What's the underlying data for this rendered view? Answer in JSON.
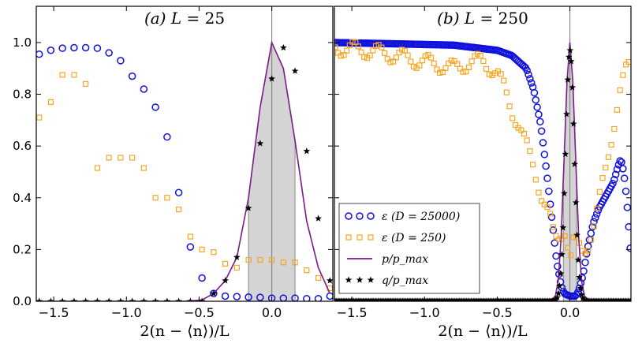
{
  "chart_data": [
    {
      "type": "scatter",
      "title": "(a) L = 25",
      "title_parts": {
        "panel": "(a)",
        "var": "L",
        "eq": " = ",
        "value": "25"
      },
      "xlabel": "2(n − ⟨n⟩)/L",
      "ylabel": "",
      "xlim": [
        -1.62,
        0.42
      ],
      "ylim": [
        0,
        1.14
      ],
      "xticks": [
        -1.5,
        -1.0,
        -0.5,
        0.0
      ],
      "xtick_labels": [
        "−1.5",
        "−1.0",
        "−0.5",
        "0.0"
      ],
      "yticks": [
        0.0,
        0.2,
        0.4,
        0.6,
        0.8,
        1.0
      ],
      "ytick_labels": [
        "0.0",
        "0.2",
        "0.4",
        "0.6",
        "0.8",
        "1.0"
      ],
      "vline_x": 0.0,
      "shaded_range": [
        -0.16,
        0.16
      ],
      "series": [
        {
          "name": "ε (D = 25000)",
          "marker": "circle",
          "color": "#1010dd",
          "x": [
            -1.6,
            -1.52,
            -1.44,
            -1.36,
            -1.28,
            -1.2,
            -1.12,
            -1.04,
            -0.96,
            -0.88,
            -0.8,
            -0.72,
            -0.64,
            -0.56,
            -0.48,
            -0.4,
            -0.32,
            -0.24,
            -0.16,
            -0.08,
            0.0,
            0.08,
            0.16,
            0.24,
            0.32,
            0.4
          ],
          "y": [
            0.955,
            0.97,
            0.978,
            0.98,
            0.98,
            0.978,
            0.96,
            0.93,
            0.87,
            0.82,
            0.75,
            0.635,
            0.42,
            0.21,
            0.09,
            0.03,
            0.02,
            0.018,
            0.016,
            0.015,
            0.012,
            0.012,
            0.012,
            0.01,
            0.01,
            0.02
          ]
        },
        {
          "name": "ε (D = 250)",
          "marker": "square",
          "color": "#f5a623",
          "x": [
            -1.6,
            -1.52,
            -1.44,
            -1.36,
            -1.28,
            -1.2,
            -1.12,
            -1.04,
            -0.96,
            -0.88,
            -0.8,
            -0.72,
            -0.64,
            -0.56,
            -0.48,
            -0.4,
            -0.32,
            -0.24,
            -0.16,
            -0.08,
            0.0,
            0.08,
            0.16,
            0.24,
            0.32,
            0.4
          ],
          "y": [
            0.71,
            0.77,
            0.875,
            0.875,
            0.84,
            0.515,
            0.555,
            0.555,
            0.555,
            0.515,
            0.4,
            0.4,
            0.355,
            0.25,
            0.2,
            0.19,
            0.145,
            0.13,
            0.16,
            0.16,
            0.16,
            0.15,
            0.15,
            0.12,
            0.09,
            0.05
          ]
        },
        {
          "name": "p/p_max",
          "marker": "line",
          "color": "#7b1a8a",
          "x": [
            -1.6,
            -0.6,
            -0.48,
            -0.4,
            -0.32,
            -0.24,
            -0.16,
            -0.08,
            0.0,
            0.08,
            0.16,
            0.24,
            0.32,
            0.4
          ],
          "y": [
            0.0,
            0.0,
            0.005,
            0.03,
            0.08,
            0.17,
            0.4,
            0.75,
            1.0,
            0.9,
            0.62,
            0.31,
            0.13,
            0.03
          ]
        },
        {
          "name": "q/p_max",
          "marker": "star",
          "color": "#000000",
          "x": [
            -1.6,
            -1.52,
            -1.44,
            -1.36,
            -1.28,
            -1.2,
            -1.12,
            -1.04,
            -0.96,
            -0.88,
            -0.8,
            -0.72,
            -0.64,
            -0.56,
            -0.48,
            -0.4,
            -0.32,
            -0.24,
            -0.16,
            -0.08,
            0.0,
            0.08,
            0.16,
            0.24,
            0.32,
            0.4
          ],
          "y": [
            0,
            0,
            0,
            0,
            0,
            0,
            0,
            0,
            0,
            0,
            0,
            0,
            0,
            0,
            0,
            0.03,
            0.08,
            0.17,
            0.36,
            0.61,
            0.86,
            0.98,
            0.89,
            0.58,
            0.32,
            0.08
          ]
        }
      ]
    },
    {
      "type": "scatter",
      "title": "(b) L = 250",
      "title_parts": {
        "panel": "(b)",
        "var": "L",
        "eq": " = ",
        "value": "250"
      },
      "xlabel": "2(n − ⟨n⟩)/L",
      "ylabel": "",
      "xlim": [
        -1.62,
        0.42
      ],
      "ylim": [
        0,
        1.14
      ],
      "xticks": [
        -1.5,
        -1.0,
        -0.5,
        0.0
      ],
      "xtick_labels": [
        "−1.5",
        "−1.0",
        "−0.5",
        "0.0"
      ],
      "yticks": [
        0.0,
        0.2,
        0.4,
        0.6,
        0.8,
        1.0
      ],
      "vline_x": 0.0,
      "shaded_range": [
        -0.045,
        0.045
      ],
      "series": [
        {
          "name": "ε (D = 25000)",
          "marker": "circle",
          "color": "#1010dd",
          "curve": [
            [
              -1.62,
              1.0
            ],
            [
              -1.2,
              0.995
            ],
            [
              -0.8,
              0.99
            ],
            [
              -0.5,
              0.97
            ],
            [
              -0.4,
              0.95
            ],
            [
              -0.3,
              0.9
            ],
            [
              -0.25,
              0.82
            ],
            [
              -0.2,
              0.68
            ],
            [
              -0.16,
              0.5
            ],
            [
              -0.12,
              0.3
            ],
            [
              -0.09,
              0.15
            ],
            [
              -0.06,
              0.06
            ],
            [
              -0.04,
              0.03
            ],
            [
              0.0,
              0.02
            ],
            [
              0.04,
              0.02
            ],
            [
              0.06,
              0.04
            ],
            [
              0.09,
              0.1
            ],
            [
              0.12,
              0.2
            ],
            [
              0.16,
              0.3
            ],
            [
              0.2,
              0.36
            ],
            [
              0.26,
              0.42
            ],
            [
              0.3,
              0.46
            ],
            [
              0.33,
              0.52
            ],
            [
              0.35,
              0.55
            ],
            [
              0.37,
              0.5
            ],
            [
              0.39,
              0.4
            ],
            [
              0.41,
              0.25
            ],
            [
              0.42,
              0.16
            ]
          ],
          "step": 0.01
        },
        {
          "name": "ε (D = 250)",
          "marker": "square",
          "color": "#f5a623",
          "curve": [
            [
              -1.62,
              0.98
            ],
            [
              -1.4,
              0.97
            ],
            [
              -1.2,
              0.95
            ],
            [
              -1.05,
              0.93
            ],
            [
              -0.95,
              0.92
            ],
            [
              -0.8,
              0.9
            ],
            [
              -0.7,
              0.92
            ],
            [
              -0.6,
              0.93
            ],
            [
              -0.5,
              0.88
            ],
            [
              -0.45,
              0.82
            ],
            [
              -0.4,
              0.74
            ],
            [
              -0.35,
              0.68
            ],
            [
              -0.3,
              0.6
            ],
            [
              -0.25,
              0.52
            ],
            [
              -0.2,
              0.42
            ],
            [
              -0.15,
              0.34
            ],
            [
              -0.12,
              0.28
            ],
            [
              -0.09,
              0.24
            ],
            [
              -0.06,
              0.25
            ],
            [
              -0.03,
              0.27
            ],
            [
              0.0,
              0.16
            ],
            [
              0.03,
              0.25
            ],
            [
              0.06,
              0.22
            ],
            [
              0.09,
              0.19
            ],
            [
              0.12,
              0.2
            ],
            [
              0.16,
              0.28
            ],
            [
              0.2,
              0.38
            ],
            [
              0.25,
              0.52
            ],
            [
              0.3,
              0.68
            ],
            [
              0.34,
              0.8
            ],
            [
              0.38,
              0.88
            ],
            [
              0.42,
              0.92
            ]
          ],
          "step": 0.02
        },
        {
          "name": "p/p_max",
          "marker": "line",
          "color": "#7b1a8a",
          "x": [
            -1.62,
            -0.14,
            -0.1,
            -0.08,
            -0.06,
            -0.04,
            -0.02,
            0.0,
            0.02,
            0.04,
            0.06,
            0.08,
            0.1,
            0.14,
            0.42
          ],
          "y": [
            0,
            0,
            0.02,
            0.08,
            0.25,
            0.55,
            0.85,
            1.0,
            0.85,
            0.55,
            0.25,
            0.08,
            0.02,
            0,
            0
          ]
        },
        {
          "name": "q/p_max",
          "marker": "star",
          "color": "#000000",
          "gauss": {
            "center": 0.0,
            "sigma": 0.03,
            "amp": 0.97
          },
          "step": 0.008
        }
      ]
    }
  ],
  "legend": [
    {
      "marker": "circle",
      "color": "#1010dd",
      "prefix": "ε",
      "label": " (D = 25000)"
    },
    {
      "marker": "square",
      "color": "#f5a623",
      "prefix": "ε",
      "label": " (D = 250)"
    },
    {
      "marker": "line",
      "color": "#7b1a8a",
      "prefix": "",
      "label": "p/p_max"
    },
    {
      "marker": "star",
      "color": "#000000",
      "prefix": "",
      "label": "q/p_max"
    }
  ]
}
